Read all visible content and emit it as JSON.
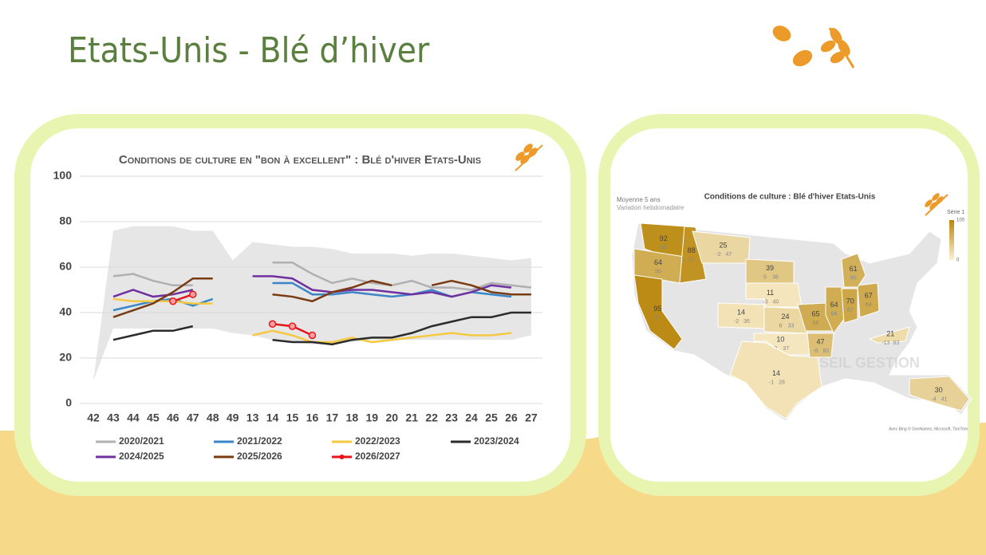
{
  "page_title": "Etats-Unis - Blé d’hiver",
  "chart_data": [
    {
      "type": "line",
      "title": "Conditions de culture en \"bon à excellent\" : Blé d'hiver Etats-Unis",
      "categories": [
        "42",
        "43",
        "44",
        "45",
        "46",
        "47",
        "48",
        "49",
        "13",
        "14",
        "15",
        "16",
        "17",
        "18",
        "19",
        "20",
        "21",
        "22",
        "23",
        "24",
        "25",
        "26",
        "27"
      ],
      "ylim": [
        0,
        100
      ],
      "yticks": [
        0,
        20,
        40,
        60,
        80,
        100
      ],
      "grid": true,
      "band": {
        "color": "#e6e6e6",
        "upper": [
          10,
          76,
          78,
          78,
          78,
          76,
          76,
          63,
          71,
          70,
          69,
          69,
          68,
          66,
          66,
          66,
          65,
          66,
          66,
          65,
          64,
          63,
          64
        ],
        "lower": [
          10,
          33,
          33,
          33,
          33,
          33,
          33,
          31,
          30,
          28,
          27,
          26,
          26,
          27,
          28,
          28,
          28,
          28,
          28,
          28,
          28,
          28,
          30
        ]
      },
      "series": [
        {
          "name": "2020/2021",
          "color": "#b0b0b0",
          "values": [
            null,
            56,
            57,
            54,
            52,
            52,
            null,
            null,
            null,
            62,
            62,
            57,
            53,
            55,
            53,
            52,
            54,
            51,
            51,
            50,
            53,
            52,
            51
          ]
        },
        {
          "name": "2021/2022",
          "color": "#3a86c8",
          "values": [
            null,
            41,
            43,
            45,
            46,
            43,
            46,
            null,
            null,
            53,
            53,
            48,
            48,
            49,
            48,
            47,
            48,
            50,
            47,
            49,
            48,
            47,
            null
          ]
        },
        {
          "name": "2022/2023",
          "color": "#f5c842",
          "values": [
            null,
            46,
            45,
            45,
            45,
            44,
            44,
            null,
            30,
            32,
            30,
            27,
            27,
            29,
            27,
            28,
            29,
            30,
            31,
            30,
            30,
            31,
            null
          ]
        },
        {
          "name": "2023/2024",
          "color": "#2b2b2b",
          "values": [
            null,
            28,
            30,
            32,
            32,
            34,
            null,
            null,
            null,
            28,
            27,
            27,
            26,
            28,
            29,
            29,
            31,
            34,
            36,
            38,
            38,
            40,
            40
          ]
        },
        {
          "name": "2024/2025",
          "color": "#7030a0",
          "values": [
            null,
            47,
            50,
            47,
            48,
            50,
            null,
            null,
            56,
            56,
            55,
            50,
            49,
            50,
            50,
            49,
            48,
            49,
            47,
            49,
            52,
            51,
            null
          ]
        },
        {
          "name": "2025/2026",
          "color": "#7a3b12",
          "values": [
            null,
            38,
            41,
            44,
            49,
            55,
            55,
            null,
            null,
            48,
            47,
            45,
            49,
            51,
            54,
            52,
            null,
            52,
            54,
            52,
            49,
            48,
            48
          ]
        },
        {
          "name": "2026/2027",
          "color": "#e8141b",
          "markers": true,
          "values": [
            null,
            null,
            null,
            null,
            45,
            48,
            null,
            null,
            null,
            35,
            34,
            30,
            null,
            null,
            null,
            null,
            null,
            null,
            null,
            null,
            null,
            null,
            null
          ]
        }
      ]
    },
    {
      "type": "map",
      "title": "Conditions de culture : Blé d'hiver Etats-Unis",
      "subtitle": "Moyenne 5 ans",
      "subtitle2": "Variation hebdomadaire",
      "legend_title": "Série 1",
      "scale": [
        0,
        100
      ],
      "scale_labels": [
        "0",
        "100"
      ],
      "color_low": "#fbf1d2",
      "color_high": "#b8860b",
      "watermark": "AUDIT  CONSEIL  GESTION",
      "credit": "Avec Bing © GeoNames, Microsoft, TomTom",
      "states": [
        {
          "value": 92,
          "avg": 55
        },
        {
          "value": 64,
          "avg": 50
        },
        {
          "value": 88,
          "avg": 52
        },
        {
          "value": 95,
          "avg": 30
        },
        {
          "value": 25,
          "change": -2,
          "avg": 47
        },
        {
          "value": 39,
          "change": 5,
          "avg": 38
        },
        {
          "value": 11,
          "change": -3,
          "avg": 40
        },
        {
          "value": 14,
          "change": -2,
          "avg": 36
        },
        {
          "value": 24,
          "change": 6,
          "avg": 33
        },
        {
          "value": 10,
          "change": 0,
          "avg": 37
        },
        {
          "value": 14,
          "change": -1,
          "avg": 26
        },
        {
          "value": 65,
          "avg": 66
        },
        {
          "value": 47,
          "change": -6,
          "avg": 62
        },
        {
          "value": 64,
          "avg": 66
        },
        {
          "value": 70,
          "avg": 67
        },
        {
          "value": 67,
          "avg": 64
        },
        {
          "value": 61,
          "avg": 60
        },
        {
          "value": 21,
          "change": -13,
          "avg": 83
        },
        {
          "value": 30,
          "change": -4,
          "avg": 41
        }
      ]
    }
  ]
}
